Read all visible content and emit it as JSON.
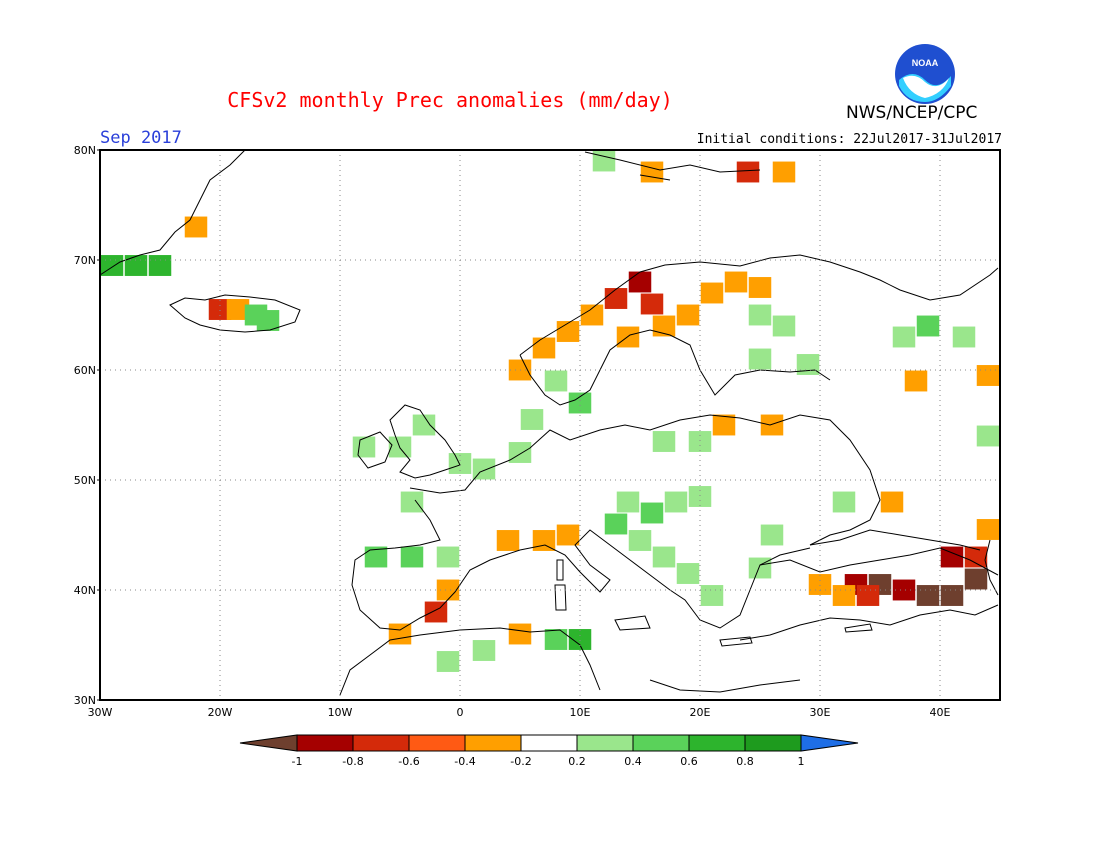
{
  "title": "CFSv2 monthly Prec anomalies (mm/day)",
  "org": "NWS/NCEP/CPC",
  "logo_text": "NOAA",
  "month": "Sep 2017",
  "initial_conditions": "Initial conditions: 22Jul2017-31Jul2017",
  "lat_labels": [
    "80N",
    "70N",
    "60N",
    "50N",
    "40N",
    "30N"
  ],
  "lon_labels": [
    "30W",
    "20W",
    "10W",
    "0",
    "10E",
    "20E",
    "30E",
    "40E"
  ],
  "colorbar": {
    "labels": [
      "-1",
      "-0.8",
      "-0.6",
      "-0.4",
      "-0.2",
      "0.2",
      "0.4",
      "0.6",
      "0.8",
      "1"
    ],
    "colors": [
      "#6e3f2e",
      "#a50000",
      "#d42a0a",
      "#ff5a14",
      "#ff9f00",
      "#ffffff",
      "#9ae68c",
      "#5ad25a",
      "#2db42d",
      "#1e9b1e",
      "#1e6ee6"
    ]
  },
  "map_extent": {
    "lon_min": -30,
    "lon_max": 45,
    "lat_min": 30,
    "lat_max": 80
  },
  "anomaly_cells": [
    {
      "lon": -29,
      "lat": 69.5,
      "v": 0.6
    },
    {
      "lon": -27,
      "lat": 69.5,
      "v": 0.6
    },
    {
      "lon": -25,
      "lat": 69.5,
      "v": 0.6
    },
    {
      "lon": -22,
      "lat": 73,
      "v": -0.4
    },
    {
      "lon": -20,
      "lat": 65.5,
      "v": -0.6
    },
    {
      "lon": -18.5,
      "lat": 65.5,
      "v": -0.4
    },
    {
      "lon": -17,
      "lat": 65,
      "v": 0.4
    },
    {
      "lon": -16,
      "lat": 64.5,
      "v": 0.4
    },
    {
      "lon": 5,
      "lat": 60,
      "v": -0.4
    },
    {
      "lon": 7,
      "lat": 62,
      "v": -0.4
    },
    {
      "lon": 9,
      "lat": 63.5,
      "v": -0.4
    },
    {
      "lon": 11,
      "lat": 65,
      "v": -0.4
    },
    {
      "lon": 13,
      "lat": 66.5,
      "v": -0.6
    },
    {
      "lon": 15,
      "lat": 68,
      "v": -0.8
    },
    {
      "lon": 16,
      "lat": 66,
      "v": -0.6
    },
    {
      "lon": 17,
      "lat": 64,
      "v": -0.4
    },
    {
      "lon": 19,
      "lat": 65,
      "v": -0.4
    },
    {
      "lon": 21,
      "lat": 67,
      "v": -0.4
    },
    {
      "lon": 23,
      "lat": 68,
      "v": -0.4
    },
    {
      "lon": 25,
      "lat": 67.5,
      "v": -0.4
    },
    {
      "lon": 14,
      "lat": 63,
      "v": -0.4
    },
    {
      "lon": 25,
      "lat": 65,
      "v": 0.2
    },
    {
      "lon": 27,
      "lat": 64,
      "v": 0.2
    },
    {
      "lon": 25,
      "lat": 61,
      "v": 0.2
    },
    {
      "lon": 29,
      "lat": 60.5,
      "v": 0.2
    },
    {
      "lon": 37,
      "lat": 63,
      "v": 0.2
    },
    {
      "lon": 39,
      "lat": 64,
      "v": 0.4
    },
    {
      "lon": 42,
      "lat": 63,
      "v": 0.2
    },
    {
      "lon": 38,
      "lat": 59,
      "v": -0.4
    },
    {
      "lon": 44,
      "lat": 59.5,
      "v": -0.4
    },
    {
      "lon": 44,
      "lat": 54,
      "v": 0.2
    },
    {
      "lon": 8,
      "lat": 59,
      "v": 0.2
    },
    {
      "lon": 10,
      "lat": 57,
      "v": 0.4
    },
    {
      "lon": 6,
      "lat": 55.5,
      "v": 0.2
    },
    {
      "lon": -3,
      "lat": 55,
      "v": 0.2
    },
    {
      "lon": -5,
      "lat": 53,
      "v": 0.2
    },
    {
      "lon": -8,
      "lat": 53,
      "v": 0.2
    },
    {
      "lon": 0,
      "lat": 51.5,
      "v": 0.2
    },
    {
      "lon": 2,
      "lat": 51,
      "v": 0.2
    },
    {
      "lon": 5,
      "lat": 52.5,
      "v": 0.2
    },
    {
      "lon": -4,
      "lat": 48,
      "v": 0.2
    },
    {
      "lon": 14,
      "lat": 48,
      "v": 0.2
    },
    {
      "lon": 16,
      "lat": 47,
      "v": 0.4
    },
    {
      "lon": 18,
      "lat": 48,
      "v": 0.2
    },
    {
      "lon": 20,
      "lat": 48.5,
      "v": 0.2
    },
    {
      "lon": 13,
      "lat": 46,
      "v": 0.4
    },
    {
      "lon": 15,
      "lat": 44.5,
      "v": 0.2
    },
    {
      "lon": 17,
      "lat": 43,
      "v": 0.2
    },
    {
      "lon": 19,
      "lat": 41.5,
      "v": 0.2
    },
    {
      "lon": 21,
      "lat": 39.5,
      "v": 0.2
    },
    {
      "lon": 25,
      "lat": 42,
      "v": 0.2
    },
    {
      "lon": 26,
      "lat": 45,
      "v": 0.2
    },
    {
      "lon": 32,
      "lat": 48,
      "v": 0.2
    },
    {
      "lon": 4,
      "lat": 44.5,
      "v": -0.4
    },
    {
      "lon": 7,
      "lat": 44.5,
      "v": -0.4
    },
    {
      "lon": 9,
      "lat": 45,
      "v": -0.4
    },
    {
      "lon": -7,
      "lat": 43,
      "v": 0.4
    },
    {
      "lon": -4,
      "lat": 43,
      "v": 0.4
    },
    {
      "lon": -1,
      "lat": 43,
      "v": 0.2
    },
    {
      "lon": -1,
      "lat": 40,
      "v": -0.4
    },
    {
      "lon": -2,
      "lat": 38,
      "v": -0.6
    },
    {
      "lon": -5,
      "lat": 36,
      "v": -0.4
    },
    {
      "lon": 5,
      "lat": 36,
      "v": -0.4
    },
    {
      "lon": 8,
      "lat": 35.5,
      "v": 0.4
    },
    {
      "lon": 10,
      "lat": 35.5,
      "v": 0.6
    },
    {
      "lon": 2,
      "lat": 34.5,
      "v": 0.2
    },
    {
      "lon": -1,
      "lat": 33.5,
      "v": 0.2
    },
    {
      "lon": 33,
      "lat": 40.5,
      "v": -0.8
    },
    {
      "lon": 35,
      "lat": 40.5,
      "v": -1
    },
    {
      "lon": 37,
      "lat": 40,
      "v": -0.8
    },
    {
      "lon": 39,
      "lat": 39.5,
      "v": -1
    },
    {
      "lon": 41,
      "lat": 39.5,
      "v": -1
    },
    {
      "lon": 43,
      "lat": 41,
      "v": -1
    },
    {
      "lon": 41,
      "lat": 43,
      "v": -0.8
    },
    {
      "lon": 43,
      "lat": 43,
      "v": -0.6
    },
    {
      "lon": 44,
      "lat": 45.5,
      "v": -0.4
    },
    {
      "lon": 30,
      "lat": 40.5,
      "v": -0.4
    },
    {
      "lon": 32,
      "lat": 39.5,
      "v": -0.4
    },
    {
      "lon": 34,
      "lat": 39.5,
      "v": -0.6
    },
    {
      "lon": 36,
      "lat": 48,
      "v": -0.4
    },
    {
      "lon": 22,
      "lat": 55,
      "v": -0.4
    },
    {
      "lon": 26,
      "lat": 55,
      "v": -0.4
    },
    {
      "lon": 17,
      "lat": 53.5,
      "v": 0.2
    },
    {
      "lon": 20,
      "lat": 53.5,
      "v": 0.2
    },
    {
      "lon": 12,
      "lat": 79,
      "v": 0.2
    },
    {
      "lon": 16,
      "lat": 78,
      "v": -0.4
    },
    {
      "lon": 24,
      "lat": 78,
      "v": -0.6
    },
    {
      "lon": 27,
      "lat": 78,
      "v": -0.4
    }
  ]
}
